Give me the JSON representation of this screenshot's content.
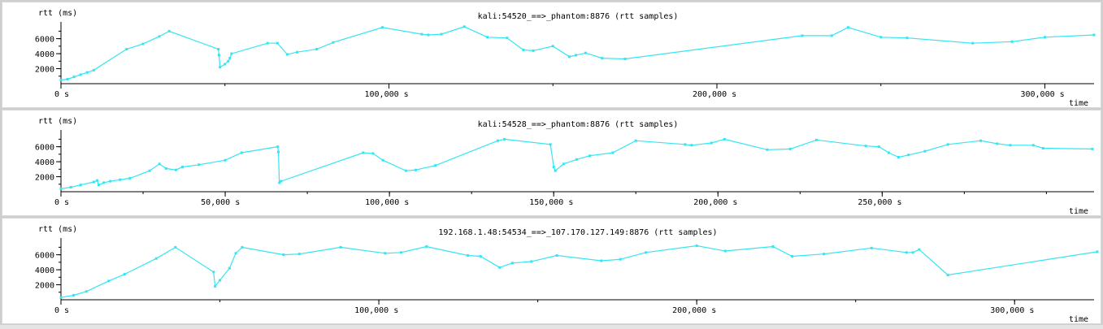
{
  "chart_data": [
    {
      "type": "line",
      "title": "kali:54520_==>_phantom:8876 (rtt samples)",
      "ylabel": "rtt (ms)",
      "xlabel": "time",
      "y_ticks": [
        "2000",
        "4000",
        "6000"
      ],
      "x_ticks": [
        "0 s",
        "100,000  s",
        "200,000  s",
        "300,000  s"
      ],
      "x_tick_values": [
        0,
        100000,
        200000,
        300000
      ],
      "xlim": [
        0,
        315000
      ],
      "ylim": [
        0,
        7800
      ],
      "color": "#33e6f2",
      "x": [
        0,
        2000,
        4000,
        6000,
        8000,
        10000,
        20000,
        25000,
        30000,
        33000,
        48000,
        48200,
        48500,
        50000,
        51000,
        51500,
        52000,
        63000,
        66000,
        69000,
        72000,
        78000,
        83000,
        98000,
        110000,
        112000,
        116000,
        123000,
        130000,
        136000,
        141000,
        144000,
        150000,
        155000,
        157000,
        160000,
        165000,
        172000,
        226000,
        235000,
        240000,
        250000,
        258000,
        278000,
        290000,
        300000,
        315000
      ],
      "y": [
        500,
        600,
        900,
        1200,
        1500,
        1800,
        4600,
        5300,
        6300,
        7000,
        4600,
        3800,
        2200,
        2600,
        3000,
        3400,
        4000,
        5400,
        5400,
        3900,
        4200,
        4600,
        5500,
        7500,
        6600,
        6500,
        6600,
        7600,
        6200,
        6100,
        4500,
        4400,
        5000,
        3600,
        3800,
        4100,
        3400,
        3300,
        6400,
        6400,
        7500,
        6200,
        6100,
        5400,
        5600,
        6200,
        6500
      ]
    },
    {
      "type": "line",
      "title": "kali:54528_==>_phantom:8876 (rtt samples)",
      "ylabel": "rtt (ms)",
      "xlabel": "time",
      "y_ticks": [
        "2000",
        "4000",
        "6000"
      ],
      "x_ticks": [
        "0 s",
        "50,000  s",
        "100,000  s",
        "150,000  s",
        "200,000  s",
        "250,000  s"
      ],
      "x_tick_values": [
        0,
        50000,
        100000,
        150000,
        200000,
        250000
      ],
      "xlim": [
        0,
        314500
      ],
      "ylim": [
        0,
        7800
      ],
      "color": "#33e6f2",
      "x": [
        0,
        3000,
        6000,
        10000,
        11000,
        11500,
        13000,
        15000,
        18000,
        21000,
        27000,
        30000,
        32000,
        35000,
        37000,
        42000,
        50000,
        55000,
        66000,
        66200,
        66500,
        67000,
        92000,
        95000,
        98000,
        105000,
        108000,
        114000,
        133000,
        135000,
        149000,
        150000,
        150500,
        153000,
        157000,
        161000,
        168000,
        175000,
        190000,
        192000,
        198000,
        202000,
        215000,
        222000,
        230000,
        245000,
        249000,
        252000,
        255000,
        258000,
        263000,
        270000,
        280000,
        285000,
        289000,
        296000,
        299000,
        314000
      ],
      "y": [
        400,
        600,
        900,
        1300,
        1500,
        900,
        1200,
        1400,
        1600,
        1800,
        2800,
        3700,
        3100,
        2900,
        3300,
        3600,
        4200,
        5200,
        6000,
        5300,
        1200,
        1400,
        5200,
        5100,
        4200,
        2800,
        2900,
        3500,
        6800,
        7000,
        6300,
        3300,
        2800,
        3700,
        4300,
        4800,
        5200,
        6800,
        6300,
        6200,
        6500,
        7000,
        5600,
        5700,
        6900,
        6100,
        6000,
        5200,
        4600,
        4900,
        5400,
        6300,
        6800,
        6400,
        6200,
        6200,
        5800,
        5700
      ]
    },
    {
      "type": "line",
      "title": "192.168.1.48:54534_==>_107.170.127.149:8876 (rtt samples)",
      "ylabel": "rtt (ms)",
      "xlabel": "time",
      "y_ticks": [
        "2000",
        "4000",
        "6000"
      ],
      "x_ticks": [
        "0 s",
        "100,000  s",
        "200,000  s",
        "300,000  s"
      ],
      "x_tick_values": [
        0,
        100000,
        200000,
        300000
      ],
      "xlim": [
        0,
        325000
      ],
      "ylim": [
        0,
        7800
      ],
      "color": "#33e6f2",
      "x": [
        0,
        4000,
        8000,
        15000,
        20000,
        30000,
        36000,
        48000,
        48500,
        50000,
        53000,
        55000,
        57000,
        70000,
        75000,
        88000,
        102000,
        107000,
        115000,
        128000,
        132000,
        138000,
        142000,
        148000,
        156000,
        170000,
        176000,
        184000,
        200000,
        209000,
        224000,
        230000,
        240000,
        255000,
        266000,
        268000,
        270000,
        279000,
        326000
      ],
      "y": [
        300,
        600,
        1100,
        2500,
        3400,
        5500,
        7000,
        3700,
        1800,
        2600,
        4200,
        6200,
        7000,
        6000,
        6100,
        7000,
        6200,
        6300,
        7100,
        5900,
        5800,
        4300,
        4900,
        5100,
        5900,
        5200,
        5400,
        6300,
        7200,
        6500,
        7100,
        5800,
        6100,
        6900,
        6300,
        6300,
        6700,
        3300,
        6400
      ]
    }
  ]
}
